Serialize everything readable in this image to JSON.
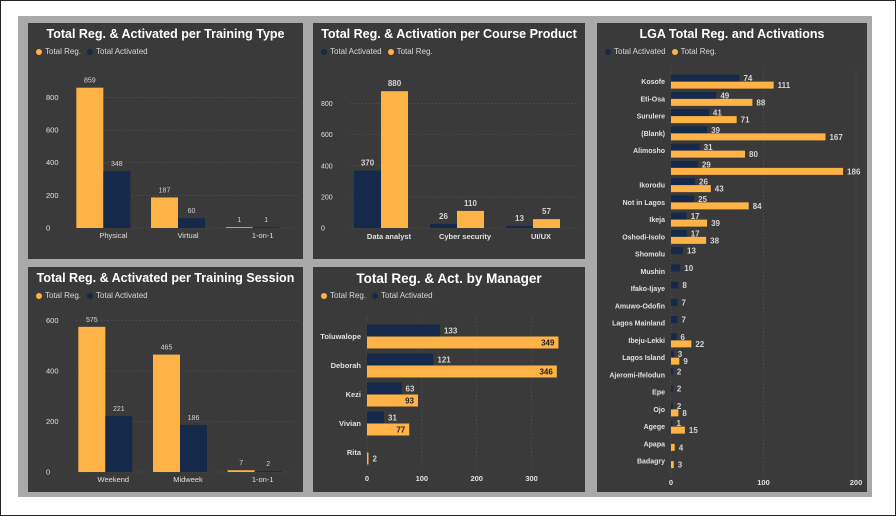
{
  "colors": {
    "total_reg": "#ffb347",
    "total_activated": "#15294a",
    "panel_bg": "#3a3a3a",
    "frame_bg": "#a9a9a9",
    "text": "#e0e0e0",
    "value_label": "#d4d4d4",
    "grid": "#5a5a5a"
  },
  "legend": {
    "total_reg": "Total Reg.",
    "total_activated": "Total Activated"
  },
  "chart_data": [
    {
      "id": "training_type",
      "type": "bar",
      "title": "Total Reg. & Activated per Training Type",
      "legend_order": [
        "total_reg",
        "total_activated"
      ],
      "categories": [
        "Physical",
        "Virtual",
        "1-on-1"
      ],
      "series": [
        {
          "name": "Total Reg.",
          "key": "total_reg",
          "values": [
            859,
            187,
            1
          ]
        },
        {
          "name": "Total Activated",
          "key": "total_activated",
          "values": [
            348,
            60,
            1
          ]
        }
      ],
      "ylim": [
        0,
        900
      ],
      "yticks": [
        0,
        200,
        400,
        600,
        800
      ],
      "grid": true
    },
    {
      "id": "course_product",
      "type": "bar",
      "title": "Total Reg. & Activation per Course Product",
      "legend_order": [
        "total_activated",
        "total_reg"
      ],
      "categories": [
        "Data analyst",
        "Cyber security",
        "UI/UX"
      ],
      "series": [
        {
          "name": "Total Activated",
          "key": "total_activated",
          "values": [
            370,
            26,
            13
          ]
        },
        {
          "name": "Total Reg.",
          "key": "total_reg",
          "values": [
            880,
            110,
            57
          ]
        }
      ],
      "ylim": [
        0,
        920
      ],
      "yticks": [
        0,
        200,
        400,
        600,
        800
      ],
      "grid": true
    },
    {
      "id": "training_session",
      "type": "bar",
      "title": "Total Reg. & Activated per Training Session",
      "legend_order": [
        "total_reg",
        "total_activated"
      ],
      "categories": [
        "Weekend",
        "Midweek",
        "1-on-1"
      ],
      "series": [
        {
          "name": "Total Reg.",
          "key": "total_reg",
          "values": [
            575,
            465,
            7
          ]
        },
        {
          "name": "Total Activated",
          "key": "total_activated",
          "values": [
            221,
            186,
            2
          ]
        }
      ],
      "ylim": [
        0,
        610
      ],
      "yticks": [
        0,
        200,
        400,
        600
      ],
      "grid": true
    },
    {
      "id": "manager",
      "type": "bar",
      "orientation": "horizontal",
      "title": "Total Reg. & Act. by Manager",
      "legend_order": [
        "total_reg",
        "total_activated"
      ],
      "categories": [
        "Toluwalope",
        "Deborah",
        "Kezi",
        "Vivian",
        "Rita"
      ],
      "series": [
        {
          "name": "Total Reg.",
          "key": "total_reg",
          "values": [
            349,
            346,
            93,
            77,
            2
          ]
        },
        {
          "name": "Total Activated",
          "key": "total_activated",
          "values": [
            133,
            121,
            63,
            31,
            null
          ]
        }
      ],
      "xlim": [
        0,
        350
      ],
      "xticks": [
        0,
        100,
        200,
        300
      ],
      "grid": true
    },
    {
      "id": "lga",
      "type": "bar",
      "orientation": "horizontal",
      "title": "LGA Total Reg. and Activations",
      "legend_order": [
        "total_activated",
        "total_reg"
      ],
      "categories": [
        "Kosofe",
        "Eti-Osa",
        "Surulere",
        "(Blank)",
        "Alimosho",
        "",
        "Ikorodu",
        "Not in Lagos",
        "Ikeja",
        "Oshodi-Isolo",
        "Shomolu",
        "Mushin",
        "Ifako-Ijaye",
        "Amuwo-Odofin",
        "Lagos Mainland",
        "Ibeju-Lekki",
        "Lagos Island",
        "Ajeromi-Ifelodun",
        "Epe",
        "Ojo",
        "Agege",
        "Apapa",
        "Badagry"
      ],
      "series": [
        {
          "name": "Total Activated",
          "key": "total_activated",
          "values": [
            74,
            49,
            41,
            39,
            31,
            29,
            26,
            25,
            17,
            17,
            13,
            10,
            8,
            7,
            7,
            6,
            3,
            2,
            2,
            2,
            1,
            null,
            null
          ]
        },
        {
          "name": "Total Reg.",
          "key": "total_reg",
          "values": [
            111,
            88,
            71,
            167,
            80,
            186,
            43,
            84,
            39,
            38,
            null,
            null,
            null,
            null,
            null,
            22,
            9,
            null,
            null,
            8,
            15,
            4,
            3
          ]
        }
      ],
      "xlim": [
        0,
        200
      ],
      "xticks": [
        0,
        100,
        200
      ],
      "grid": true
    }
  ]
}
